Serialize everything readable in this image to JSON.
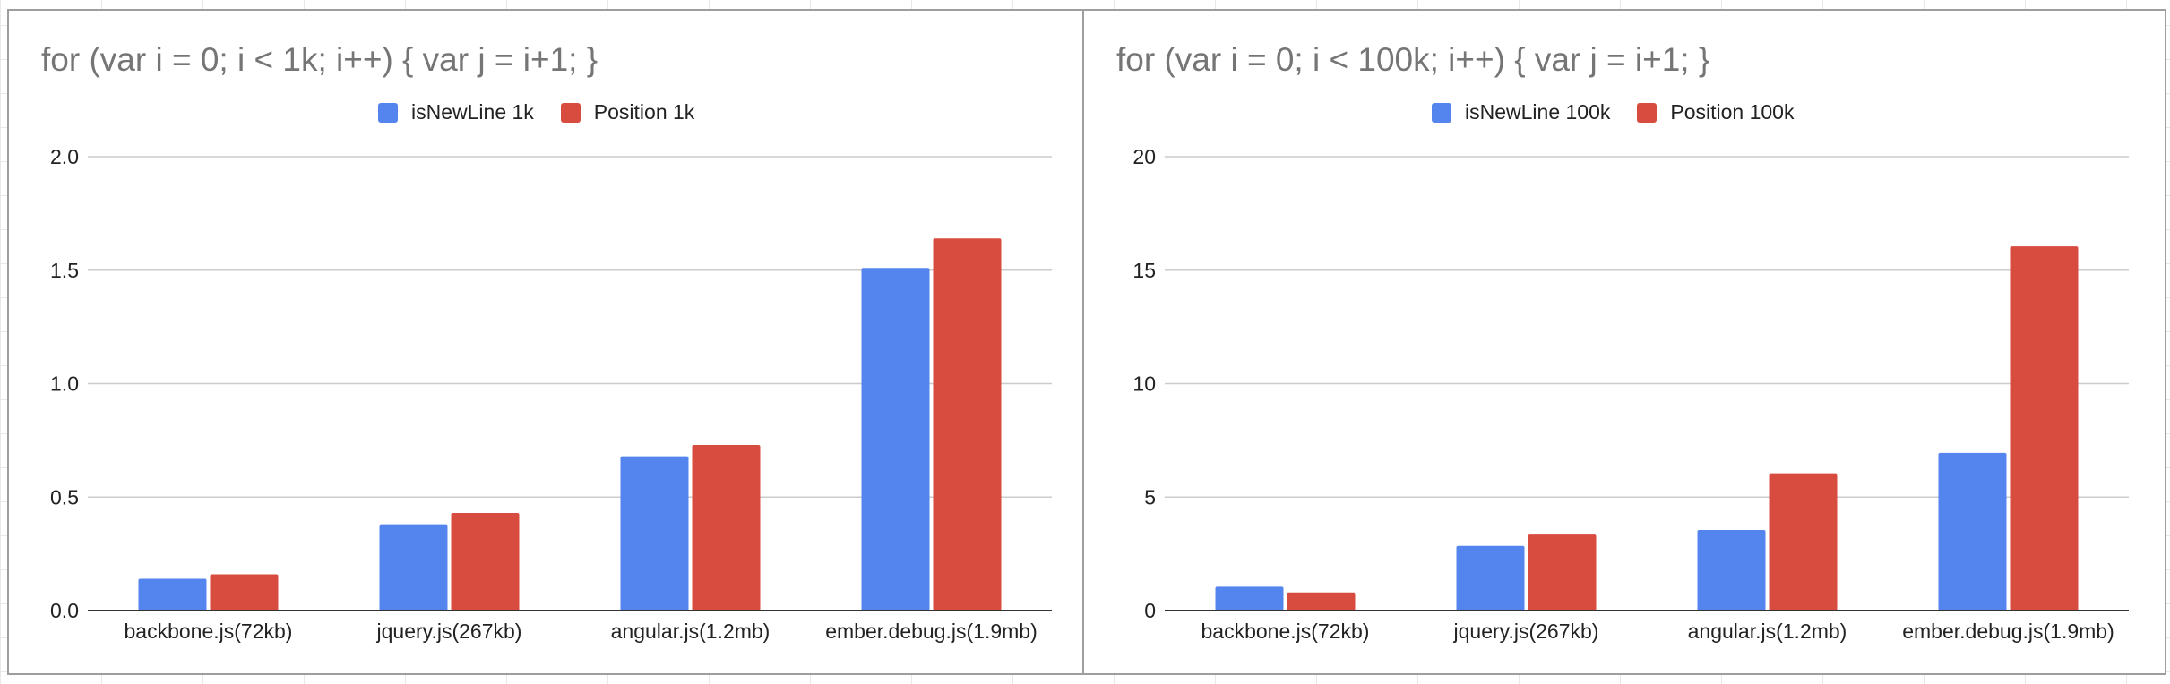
{
  "colors": {
    "series1": "#5484ed",
    "series2": "#d84c3f",
    "grid": "#cccccc",
    "axis": "#333333"
  },
  "chart_data": [
    {
      "type": "bar",
      "title": "for (var i = 0; i < 1k; i++) { var j = i+1; }",
      "categories": [
        "backbone.js(72kb)",
        "jquery.js(267kb)",
        "angular.js(1.2mb)",
        "ember.debug.js(1.9mb)"
      ],
      "series": [
        {
          "name": "isNewLine 1k",
          "values": [
            0.14,
            0.38,
            0.68,
            1.51
          ]
        },
        {
          "name": "Position 1k",
          "values": [
            0.16,
            0.43,
            0.73,
            1.64
          ]
        }
      ],
      "ylim": [
        0,
        2.0
      ],
      "yticks": [
        "0.0",
        "0.5",
        "1.0",
        "1.5",
        "2.0"
      ],
      "ytick_values": [
        0,
        0.5,
        1.0,
        1.5,
        2.0
      ],
      "grid": true,
      "legend": "top-center",
      "xlabel": "",
      "ylabel": ""
    },
    {
      "type": "bar",
      "title": "for (var i = 0; i < 100k; i++) { var j = i+1; }",
      "categories": [
        "backbone.js(72kb)",
        "jquery.js(267kb)",
        "angular.js(1.2mb)",
        "ember.debug.js(1.9mb)"
      ],
      "series": [
        {
          "name": "isNewLine 100k",
          "values": [
            1.05,
            2.85,
            3.55,
            6.95
          ]
        },
        {
          "name": "Position 100k",
          "values": [
            0.8,
            3.35,
            6.05,
            16.05
          ]
        }
      ],
      "ylim": [
        0,
        20
      ],
      "yticks": [
        "0",
        "5",
        "10",
        "15",
        "20"
      ],
      "ytick_values": [
        0,
        5,
        10,
        15,
        20
      ],
      "grid": true,
      "legend": "top-center",
      "xlabel": "",
      "ylabel": ""
    }
  ]
}
